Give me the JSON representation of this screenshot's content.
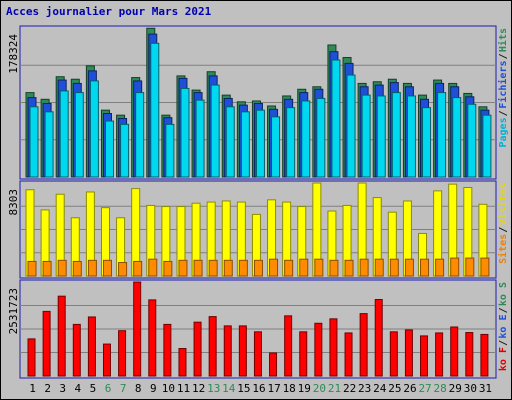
{
  "title": "Acces journalier pour Mars 2021",
  "chart_data": {
    "type": "bar",
    "title": "Acces journalier pour Mars 2021",
    "categories": [
      "1",
      "2",
      "3",
      "4",
      "5",
      "6",
      "7",
      "8",
      "9",
      "10",
      "11",
      "12",
      "13",
      "14",
      "15",
      "16",
      "17",
      "18",
      "19",
      "20",
      "21",
      "22",
      "23",
      "24",
      "25",
      "26",
      "27",
      "28",
      "29",
      "30",
      "31"
    ],
    "weekend_days": [
      "6",
      "7",
      "13",
      "14",
      "20",
      "21",
      "27",
      "28"
    ],
    "panels": [
      {
        "max_label": "178324",
        "ymax": 178324,
        "legend": [
          {
            "text": "Hits",
            "color": "#2e8b57"
          },
          {
            "text": "/",
            "color": "#222222"
          },
          {
            "text": "Fichiers",
            "color": "#1f4fd8"
          },
          {
            "text": "/",
            "color": "#222222"
          },
          {
            "text": "Pages",
            "color": "#00b0d8"
          }
        ],
        "series": [
          {
            "name": "Hits",
            "color": "#2e8b57",
            "values": [
              101000,
              93000,
              120000,
              117000,
              133000,
              80000,
              74000,
              119000,
              178000,
              74000,
              121000,
              104000,
              126000,
              98000,
              90000,
              91000,
              85000,
              97000,
              105000,
              108000,
              158000,
              143000,
              112000,
              114000,
              117000,
              112000,
              98000,
              116000,
              112000,
              100000,
              84000
            ]
          },
          {
            "name": "Fichiers",
            "color": "#1f4fd8",
            "values": [
              95000,
              88000,
              116000,
              112000,
              127000,
              76000,
              70000,
              115000,
              171000,
              71000,
              118000,
              101000,
              121000,
              94000,
              86000,
              88000,
              81000,
              93000,
              101000,
              105000,
              150000,
              136000,
              108000,
              110000,
              113000,
              108000,
              93000,
              112000,
              108000,
              96000,
              80000
            ]
          },
          {
            "name": "Pages",
            "color": "#00d8f0",
            "values": [
              84000,
              78000,
              103000,
              101000,
              115000,
              67000,
              63000,
              101000,
              160000,
              63000,
              106000,
              92000,
              110000,
              84000,
              78000,
              80000,
              72000,
              83000,
              91000,
              94000,
              140000,
              122000,
              98000,
              97000,
              101000,
              97000,
              83000,
              101000,
              95000,
              87000,
              74000
            ]
          }
        ]
      },
      {
        "max_label": "8303",
        "ymax": 8303,
        "legend": [
          {
            "text": "Visites",
            "color": "#e8d800"
          },
          {
            "text": "/",
            "color": "#222222"
          },
          {
            "text": "Sites",
            "color": "#f08000"
          }
        ],
        "series": [
          {
            "name": "Visites",
            "color": "#ffff00",
            "values": [
              7700,
              5900,
              7300,
              5200,
              7500,
              6100,
              5200,
              7800,
              6300,
              6200,
              6200,
              6500,
              6600,
              6700,
              6600,
              5500,
              6800,
              6600,
              6200,
              8300,
              5800,
              6300,
              8300,
              7000,
              5700,
              6700,
              3800,
              7600,
              8200,
              7900,
              6400
            ]
          },
          {
            "name": "Sites",
            "color": "#ff8c00",
            "values": [
              1300,
              1300,
              1400,
              1300,
              1400,
              1400,
              1200,
              1300,
              1500,
              1300,
              1400,
              1400,
              1400,
              1400,
              1400,
              1400,
              1500,
              1400,
              1500,
              1500,
              1400,
              1400,
              1500,
              1500,
              1500,
              1500,
              1500,
              1500,
              1600,
              1600,
              1600
            ]
          }
        ]
      },
      {
        "max_label": "2531723",
        "ymax": 2531723,
        "legend": [
          {
            "text": "ko S",
            "color": "#2e8b57"
          },
          {
            "text": "/",
            "color": "#222222"
          },
          {
            "text": "ko E",
            "color": "#1f4fd8"
          },
          {
            "text": "/",
            "color": "#222222"
          },
          {
            "text": "ko F",
            "color": "#e00000"
          }
        ],
        "series": [
          {
            "name": "ko F",
            "color": "#ff0000",
            "values": [
              1000000,
              1740000,
              2150000,
              1390000,
              1590000,
              860000,
              1220000,
              2530000,
              2050000,
              1390000,
              740000,
              1450000,
              1600000,
              1350000,
              1350000,
              1190000,
              620000,
              1620000,
              1190000,
              1420000,
              1540000,
              1160000,
              1680000,
              2060000,
              1190000,
              1240000,
              1080000,
              1160000,
              1320000,
              1170000,
              1120000
            ]
          }
        ]
      }
    ]
  }
}
